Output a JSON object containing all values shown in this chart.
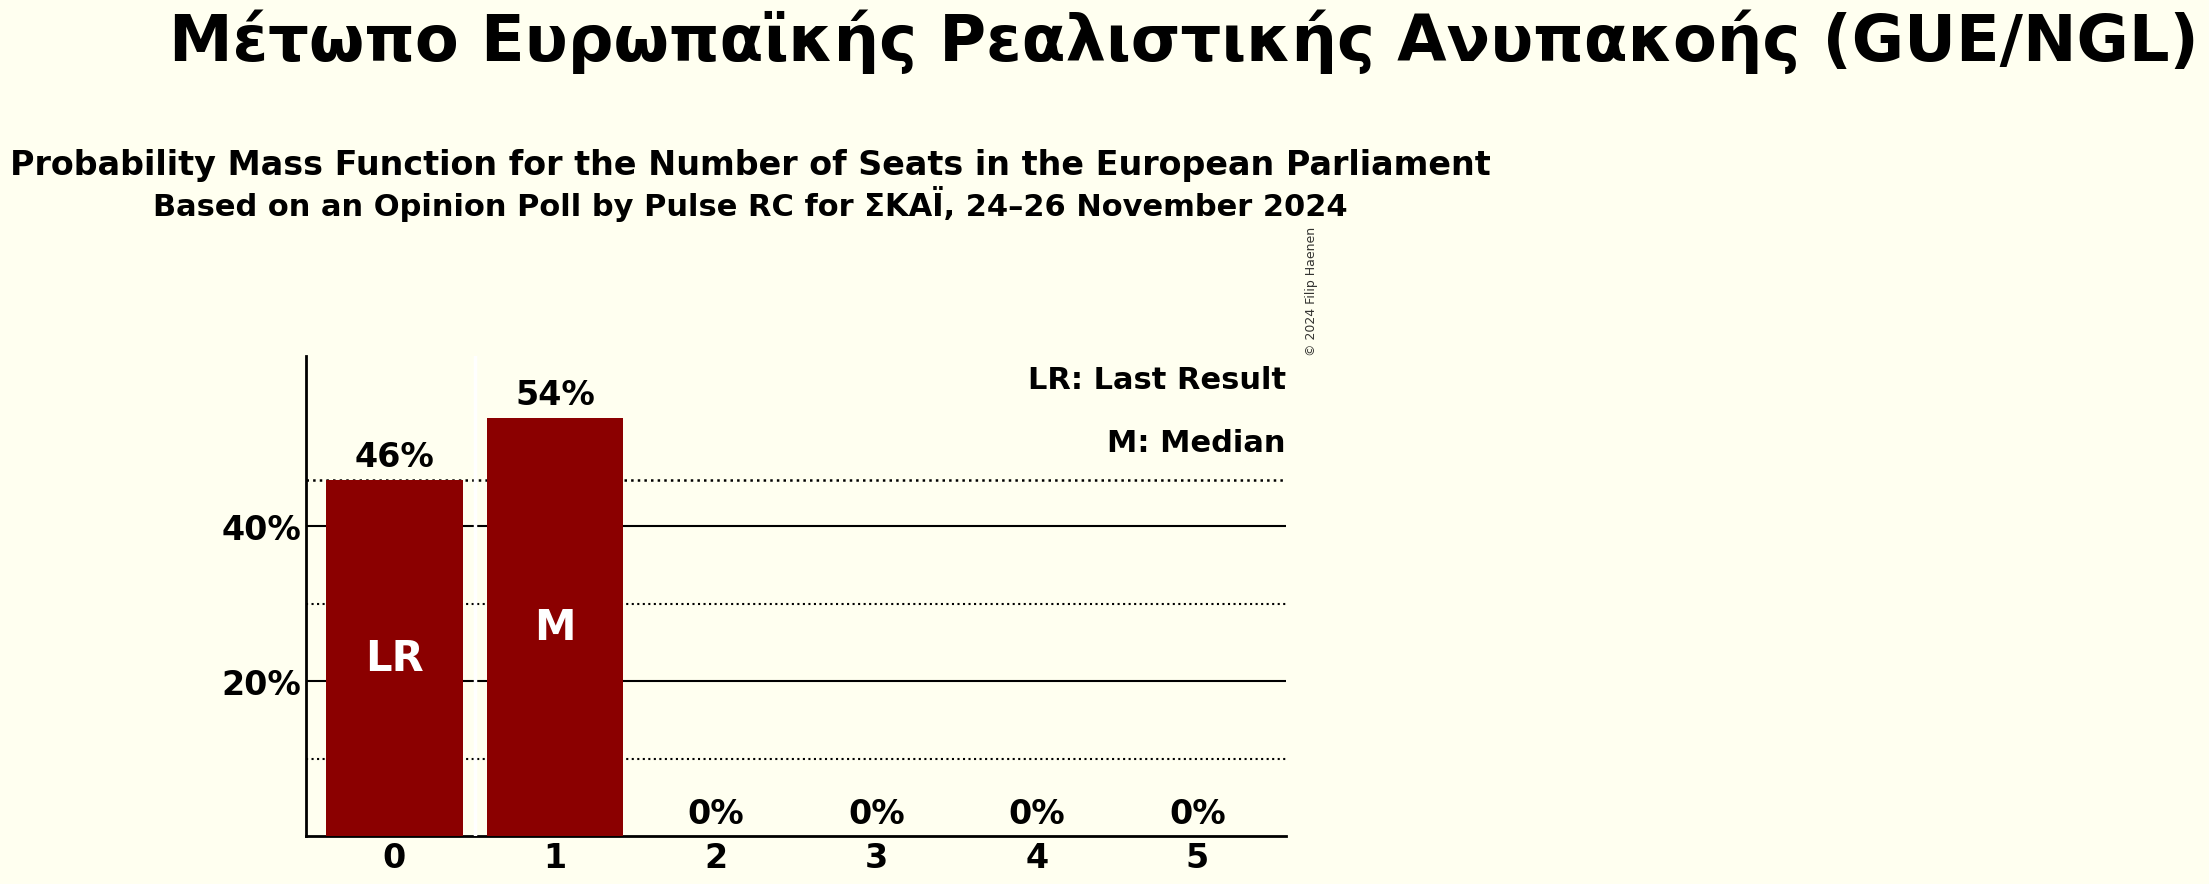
{
  "title_top": "Μέτωπο Ευρωπαϊκής Ρεαλιστικής Ανυπακοής (GUE/NGL)",
  "subtitle1": "Probability Mass Function for the Number of Seats in the European Parliament",
  "subtitle2": "Based on an Opinion Poll by Pulse RC for ΣΚΑΪ, 24–26 November 2024",
  "categories": [
    0,
    1,
    2,
    3,
    4,
    5
  ],
  "values": [
    0.46,
    0.54,
    0.0,
    0.0,
    0.0,
    0.0
  ],
  "bar_color": "#8B0000",
  "background_color": "#FFFFF0",
  "bar_labels": [
    "46%",
    "54%",
    "0%",
    "0%",
    "0%",
    "0%"
  ],
  "bar_annotations": [
    "LR",
    "M",
    "",
    "",
    "",
    ""
  ],
  "dotted_line_y": 0.46,
  "ylim": [
    0,
    0.62
  ],
  "yticks": [
    0.2,
    0.4
  ],
  "ytick_labels": [
    "20%",
    "40%"
  ],
  "legend_lr": "LR: Last Result",
  "legend_m": "M: Median",
  "copyright_text": "© 2024 Filip Haenen",
  "title_fontsize": 46,
  "subtitle_fontsize": 24,
  "subtitle2_fontsize": 22,
  "bar_label_fontsize": 24,
  "annotation_fontsize": 30,
  "ytick_fontsize": 24,
  "xtick_fontsize": 24,
  "legend_fontsize": 22
}
